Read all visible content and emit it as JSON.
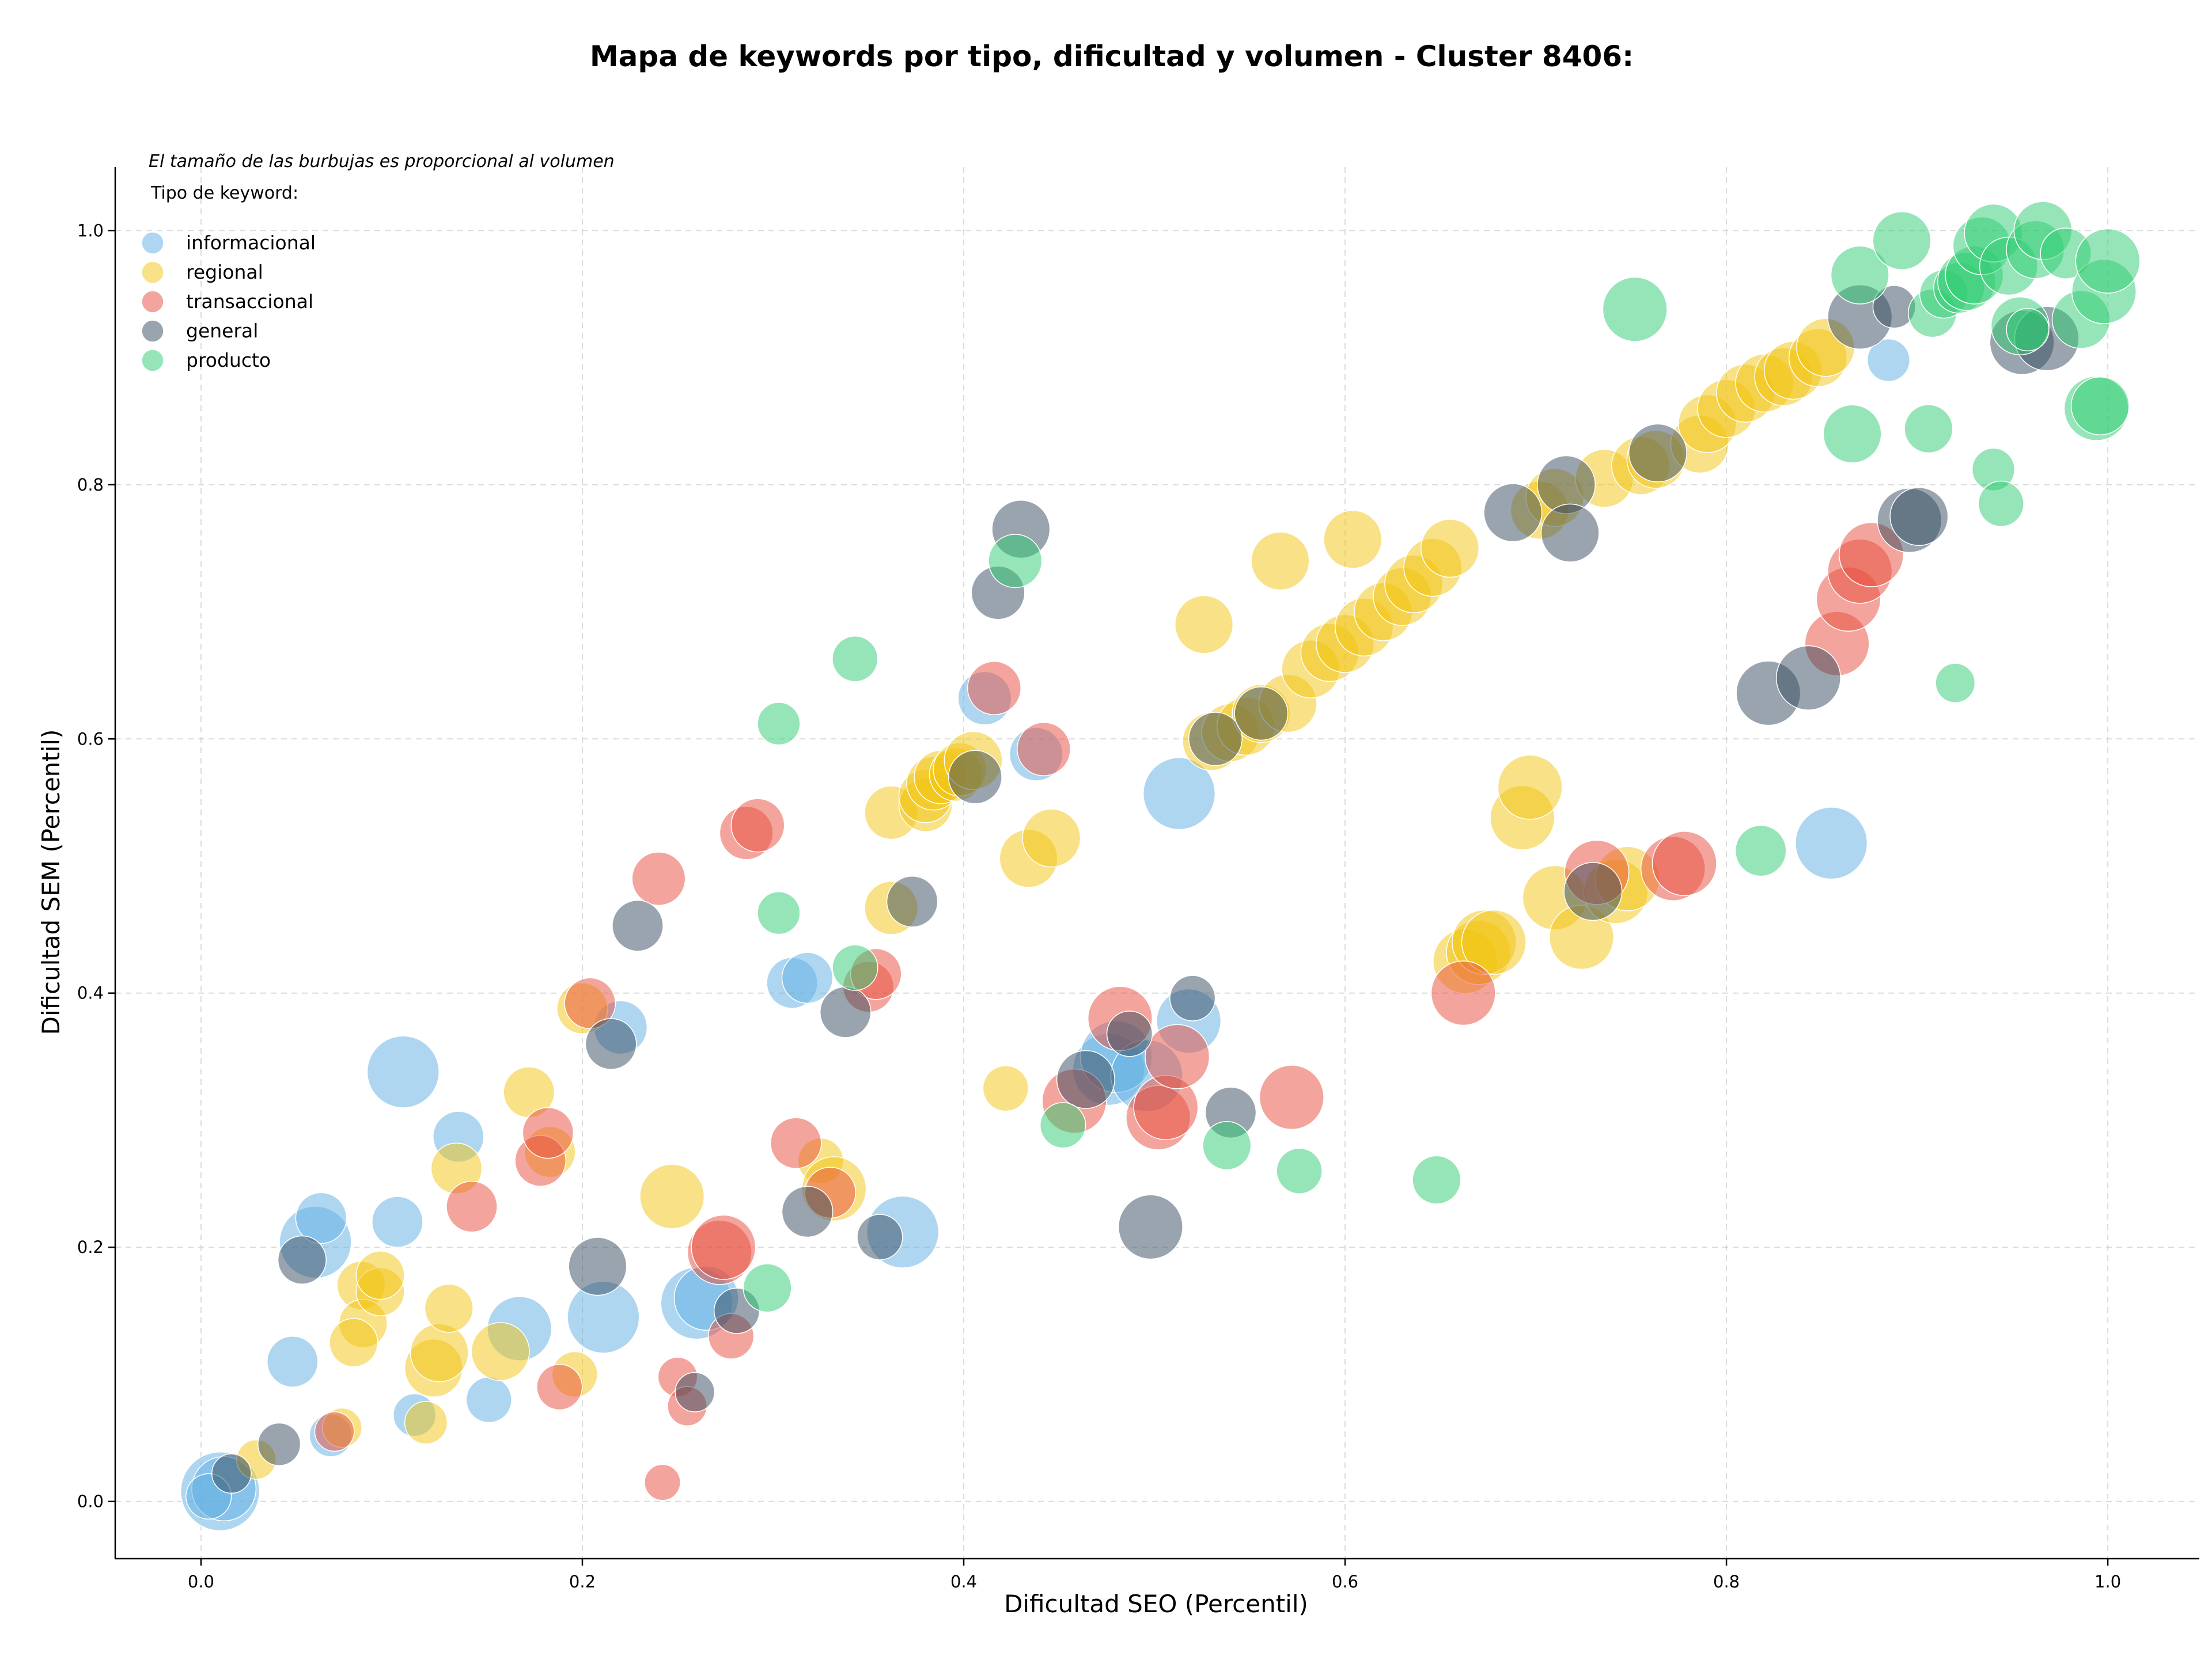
{
  "chart_data": {
    "type": "scatter",
    "title": "Mapa de keywords por tipo, dificultad y volumen - Cluster 8406:",
    "note": "El tamaño de las burbujas es proporcional al volumen",
    "xlabel": "Dificultad SEO (Percentil)",
    "ylabel": "Dificultad SEM (Percentil)",
    "xlim": [
      -0.045,
      1.048
    ],
    "ylim": [
      -0.045,
      1.05
    ],
    "xticks": [
      0.0,
      0.2,
      0.4,
      0.6,
      0.8,
      1.0
    ],
    "xtick_labels": [
      "0.0",
      "0.2",
      "0.4",
      "0.6",
      "0.8",
      "1.0"
    ],
    "yticks": [
      0.0,
      0.2,
      0.4,
      0.6,
      0.8,
      1.0
    ],
    "ytick_labels": [
      "0.0",
      "0.2",
      "0.4",
      "0.6",
      "0.8",
      "1.0"
    ],
    "grid": true,
    "legend": {
      "title": "Tipo de keyword:",
      "placement": "top-left"
    },
    "series": [
      {
        "name": "informacional",
        "color": "#5dade2",
        "points": [
          [
            0.01,
            0.008,
            2.4
          ],
          [
            0.012,
            0.01,
            1.6
          ],
          [
            0.004,
            0.004,
            0.8
          ],
          [
            0.048,
            0.11,
            1.0
          ],
          [
            0.06,
            0.204,
            2.0
          ],
          [
            0.063,
            0.223,
            1.0
          ],
          [
            0.068,
            0.052,
            0.7
          ],
          [
            0.106,
            0.338,
            2.0
          ],
          [
            0.103,
            0.22,
            1.0
          ],
          [
            0.112,
            0.068,
            0.7
          ],
          [
            0.135,
            0.287,
            1.0
          ],
          [
            0.151,
            0.08,
            0.8
          ],
          [
            0.167,
            0.136,
            1.6
          ],
          [
            0.211,
            0.145,
            2.0
          ],
          [
            0.22,
            0.373,
            1.1
          ],
          [
            0.31,
            0.408,
            1.0
          ],
          [
            0.318,
            0.412,
            1.0
          ],
          [
            0.26,
            0.156,
            2.0
          ],
          [
            0.265,
            0.16,
            1.6
          ],
          [
            0.368,
            0.212,
            2.0
          ],
          [
            0.411,
            0.632,
            1.1
          ],
          [
            0.438,
            0.588,
            1.1
          ],
          [
            0.476,
            0.34,
            2.0
          ],
          [
            0.48,
            0.35,
            2.0
          ],
          [
            0.496,
            0.335,
            2.0
          ],
          [
            0.513,
            0.557,
            2.0
          ],
          [
            0.518,
            0.378,
            1.6
          ],
          [
            0.855,
            0.518,
            2.0
          ],
          [
            0.885,
            0.898,
            0.7
          ]
        ]
      },
      {
        "name": "regional",
        "color": "#f1c40f",
        "points": [
          [
            0.029,
            0.033,
            0.6
          ],
          [
            0.074,
            0.058,
            0.6
          ],
          [
            0.084,
            0.17,
            0.9
          ],
          [
            0.085,
            0.14,
            0.9
          ],
          [
            0.08,
            0.125,
            0.9
          ],
          [
            0.094,
            0.165,
            0.9
          ],
          [
            0.094,
            0.178,
            0.9
          ],
          [
            0.118,
            0.062,
            0.7
          ],
          [
            0.122,
            0.105,
            1.3
          ],
          [
            0.125,
            0.117,
            1.3
          ],
          [
            0.13,
            0.152,
            0.9
          ],
          [
            0.134,
            0.262,
            1.0
          ],
          [
            0.157,
            0.118,
            1.3
          ],
          [
            0.172,
            0.322,
            1.0
          ],
          [
            0.183,
            0.275,
            1.0
          ],
          [
            0.196,
            0.1,
            0.8
          ],
          [
            0.2,
            0.388,
            1.0
          ],
          [
            0.247,
            0.24,
            1.6
          ],
          [
            0.325,
            0.268,
            0.8
          ],
          [
            0.332,
            0.246,
            1.6
          ],
          [
            0.362,
            0.542,
            1.1
          ],
          [
            0.362,
            0.467,
            1.1
          ],
          [
            0.38,
            0.548,
            1.1
          ],
          [
            0.38,
            0.555,
            1.1
          ],
          [
            0.384,
            0.565,
            1.1
          ],
          [
            0.388,
            0.57,
            1.1
          ],
          [
            0.396,
            0.572,
            1.1
          ],
          [
            0.398,
            0.576,
            1.1
          ],
          [
            0.405,
            0.583,
            1.3
          ],
          [
            0.422,
            0.325,
            0.8
          ],
          [
            0.434,
            0.506,
            1.3
          ],
          [
            0.446,
            0.522,
            1.3
          ],
          [
            0.526,
            0.69,
            1.3
          ],
          [
            0.53,
            0.598,
            1.3
          ],
          [
            0.54,
            0.605,
            1.3
          ],
          [
            0.548,
            0.61,
            1.3
          ],
          [
            0.556,
            0.62,
            1.3
          ],
          [
            0.566,
            0.74,
            1.3
          ],
          [
            0.57,
            0.628,
            1.3
          ],
          [
            0.582,
            0.655,
            1.3
          ],
          [
            0.592,
            0.668,
            1.3
          ],
          [
            0.6,
            0.675,
            1.3
          ],
          [
            0.604,
            0.757,
            1.3
          ],
          [
            0.61,
            0.688,
            1.3
          ],
          [
            0.62,
            0.7,
            1.3
          ],
          [
            0.63,
            0.712,
            1.3
          ],
          [
            0.636,
            0.722,
            1.3
          ],
          [
            0.646,
            0.735,
            1.3
          ],
          [
            0.655,
            0.75,
            1.3
          ],
          [
            0.663,
            0.425,
            1.6
          ],
          [
            0.67,
            0.432,
            1.6
          ],
          [
            0.673,
            0.44,
            1.6
          ],
          [
            0.678,
            0.44,
            1.6
          ],
          [
            0.693,
            0.538,
            1.6
          ],
          [
            0.697,
            0.562,
            1.6
          ],
          [
            0.702,
            0.78,
            1.3
          ],
          [
            0.71,
            0.79,
            1.3
          ],
          [
            0.71,
            0.475,
            1.6
          ],
          [
            0.724,
            0.444,
            1.6
          ],
          [
            0.736,
            0.805,
            1.3
          ],
          [
            0.742,
            0.48,
            1.6
          ],
          [
            0.748,
            0.49,
            1.6
          ],
          [
            0.755,
            0.815,
            1.3
          ],
          [
            0.763,
            0.82,
            1.3
          ],
          [
            0.786,
            0.832,
            1.3
          ],
          [
            0.79,
            0.848,
            1.3
          ],
          [
            0.8,
            0.86,
            1.3
          ],
          [
            0.81,
            0.872,
            1.3
          ],
          [
            0.82,
            0.88,
            1.3
          ],
          [
            0.83,
            0.885,
            1.3
          ],
          [
            0.835,
            0.89,
            1.3
          ],
          [
            0.848,
            0.9,
            1.3
          ],
          [
            0.852,
            0.908,
            1.3
          ]
        ]
      },
      {
        "name": "transaccional",
        "color": "#e74c3c",
        "points": [
          [
            0.07,
            0.055,
            0.6
          ],
          [
            0.142,
            0.232,
            1.0
          ],
          [
            0.178,
            0.268,
            1.0
          ],
          [
            0.182,
            0.29,
            1.0
          ],
          [
            0.188,
            0.09,
            0.8
          ],
          [
            0.204,
            0.392,
            1.0
          ],
          [
            0.24,
            0.49,
            1.1
          ],
          [
            0.242,
            0.015,
            0.5
          ],
          [
            0.25,
            0.098,
            0.6
          ],
          [
            0.255,
            0.075,
            0.6
          ],
          [
            0.272,
            0.196,
            1.6
          ],
          [
            0.274,
            0.2,
            1.6
          ],
          [
            0.278,
            0.13,
            0.8
          ],
          [
            0.286,
            0.526,
            1.1
          ],
          [
            0.292,
            0.532,
            1.1
          ],
          [
            0.312,
            0.282,
            1.0
          ],
          [
            0.33,
            0.243,
            1.0
          ],
          [
            0.35,
            0.405,
            1.0
          ],
          [
            0.354,
            0.415,
            1.0
          ],
          [
            0.416,
            0.64,
            1.1
          ],
          [
            0.442,
            0.592,
            1.1
          ],
          [
            0.458,
            0.315,
            1.6
          ],
          [
            0.482,
            0.38,
            1.6
          ],
          [
            0.502,
            0.302,
            1.6
          ],
          [
            0.506,
            0.31,
            1.6
          ],
          [
            0.512,
            0.35,
            1.6
          ],
          [
            0.572,
            0.318,
            1.6
          ],
          [
            0.662,
            0.4,
            1.6
          ],
          [
            0.732,
            0.495,
            1.6
          ],
          [
            0.772,
            0.498,
            1.6
          ],
          [
            0.778,
            0.502,
            1.6
          ],
          [
            0.858,
            0.675,
            1.6
          ],
          [
            0.864,
            0.71,
            1.6
          ],
          [
            0.87,
            0.732,
            1.6
          ],
          [
            0.876,
            0.745,
            1.6
          ]
        ]
      },
      {
        "name": "general",
        "color": "#34495e",
        "points": [
          [
            0.016,
            0.022,
            0.6
          ],
          [
            0.041,
            0.045,
            0.7
          ],
          [
            0.053,
            0.19,
            0.9
          ],
          [
            0.208,
            0.185,
            1.3
          ],
          [
            0.215,
            0.36,
            1.0
          ],
          [
            0.229,
            0.453,
            1.0
          ],
          [
            0.259,
            0.086,
            0.6
          ],
          [
            0.281,
            0.15,
            0.8
          ],
          [
            0.318,
            0.228,
            1.0
          ],
          [
            0.338,
            0.385,
            1.0
          ],
          [
            0.356,
            0.208,
            0.8
          ],
          [
            0.373,
            0.472,
            1.0
          ],
          [
            0.406,
            0.57,
            1.1
          ],
          [
            0.418,
            0.715,
            1.1
          ],
          [
            0.43,
            0.765,
            1.3
          ],
          [
            0.464,
            0.332,
            1.3
          ],
          [
            0.487,
            0.368,
            0.8
          ],
          [
            0.498,
            0.216,
            1.6
          ],
          [
            0.52,
            0.396,
            0.8
          ],
          [
            0.54,
            0.306,
            1.0
          ],
          [
            0.532,
            0.6,
            1.1
          ],
          [
            0.556,
            0.62,
            1.1
          ],
          [
            0.688,
            0.778,
            1.3
          ],
          [
            0.716,
            0.8,
            1.3
          ],
          [
            0.718,
            0.762,
            1.3
          ],
          [
            0.73,
            0.48,
            1.3
          ],
          [
            0.764,
            0.825,
            1.3
          ],
          [
            0.822,
            0.636,
            1.6
          ],
          [
            0.843,
            0.648,
            1.6
          ],
          [
            0.87,
            0.932,
            1.6
          ],
          [
            0.888,
            0.94,
            0.7
          ],
          [
            0.896,
            0.772,
            1.6
          ],
          [
            0.901,
            0.775,
            1.3
          ],
          [
            0.955,
            0.912,
            1.6
          ],
          [
            0.968,
            0.915,
            1.6
          ]
        ]
      },
      {
        "name": "producto",
        "color": "#2ecc71",
        "points": [
          [
            0.297,
            0.168,
            0.9
          ],
          [
            0.303,
            0.612,
            0.7
          ],
          [
            0.303,
            0.463,
            0.7
          ],
          [
            0.343,
            0.663,
            0.8
          ],
          [
            0.343,
            0.42,
            0.8
          ],
          [
            0.427,
            0.74,
            1.1
          ],
          [
            0.452,
            0.296,
            0.8
          ],
          [
            0.538,
            0.28,
            0.9
          ],
          [
            0.576,
            0.26,
            0.8
          ],
          [
            0.648,
            0.253,
            0.9
          ],
          [
            0.752,
            0.938,
            1.6
          ],
          [
            0.818,
            0.512,
            1.0
          ],
          [
            0.866,
            0.84,
            1.3
          ],
          [
            0.87,
            0.965,
            1.3
          ],
          [
            0.892,
            0.992,
            1.3
          ],
          [
            0.908,
            0.935,
            0.9
          ],
          [
            0.914,
            0.95,
            0.9
          ],
          [
            0.92,
            0.644,
            0.6
          ],
          [
            0.922,
            0.955,
            1.0
          ],
          [
            0.926,
            0.96,
            1.3
          ],
          [
            0.93,
            0.965,
            1.3
          ],
          [
            0.934,
            0.988,
            1.3
          ],
          [
            0.94,
            0.998,
            1.3
          ],
          [
            0.948,
            0.972,
            1.3
          ],
          [
            0.94,
            0.812,
            0.7
          ],
          [
            0.944,
            0.785,
            0.8
          ],
          [
            0.954,
            0.925,
            1.3
          ],
          [
            0.958,
            0.922,
            0.7
          ],
          [
            0.962,
            0.985,
            1.3
          ],
          [
            0.966,
            1.0,
            1.3
          ],
          [
            0.978,
            0.982,
            1.0
          ],
          [
            0.986,
            0.93,
            1.3
          ],
          [
            0.994,
            0.86,
            1.6
          ],
          [
            0.996,
            0.862,
            1.3
          ],
          [
            0.998,
            0.952,
            1.6
          ],
          [
            1.0,
            0.976,
            1.6
          ],
          [
            0.906,
            0.844,
            0.9
          ]
        ]
      }
    ]
  }
}
